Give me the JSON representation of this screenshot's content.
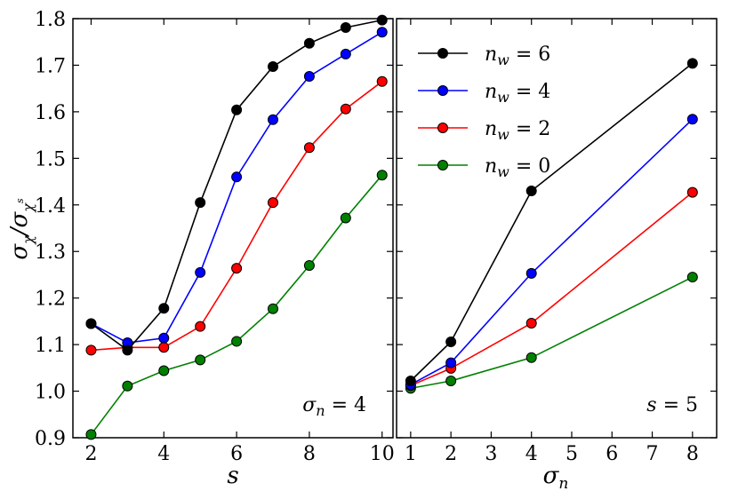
{
  "chart_data": [
    {
      "type": "line",
      "xlabel": "s",
      "ylabel": "σχ/σχs",
      "xlim": [
        1.5,
        10.3
      ],
      "ylim": [
        0.9,
        1.8
      ],
      "xticks": [
        2,
        4,
        6,
        8,
        10
      ],
      "yticks": [
        0.9,
        1.0,
        1.1,
        1.2,
        1.3,
        1.4,
        1.5,
        1.6,
        1.7,
        1.8
      ],
      "annotation": "σn = 4",
      "series": [
        {
          "name": "nw = 6",
          "color": "#000000",
          "x": [
            2,
            3,
            4,
            5,
            6,
            7,
            8,
            9,
            10
          ],
          "values": [
            1.145,
            1.088,
            1.178,
            1.405,
            1.604,
            1.697,
            1.747,
            1.781,
            1.797
          ]
        },
        {
          "name": "nw = 4",
          "color": "#0000ff",
          "x": [
            2,
            3,
            4,
            5,
            6,
            7,
            8,
            9,
            10
          ],
          "values": [
            1.145,
            1.104,
            1.114,
            1.255,
            1.46,
            1.583,
            1.676,
            1.724,
            1.771
          ]
        },
        {
          "name": "nw = 2",
          "color": "#ff0000",
          "x": [
            2,
            3,
            4,
            5,
            6,
            7,
            8,
            9,
            10
          ],
          "values": [
            1.088,
            1.094,
            1.094,
            1.139,
            1.264,
            1.405,
            1.523,
            1.606,
            1.665
          ]
        },
        {
          "name": "nw = 0",
          "color": "#008000",
          "x": [
            2,
            3,
            4,
            5,
            6,
            7,
            8,
            9,
            10
          ],
          "values": [
            0.907,
            1.011,
            1.044,
            1.067,
            1.107,
            1.177,
            1.27,
            1.372,
            1.464
          ]
        }
      ]
    },
    {
      "type": "line",
      "xlabel": "σn",
      "ylabel": "",
      "xlim": [
        0.65,
        8.6
      ],
      "ylim": [
        0.9,
        1.8
      ],
      "xticks": [
        1,
        2,
        3,
        4,
        5,
        6,
        7,
        8
      ],
      "yticks": [
        0.9,
        1.0,
        1.1,
        1.2,
        1.3,
        1.4,
        1.5,
        1.6,
        1.7,
        1.8
      ],
      "annotation": "s = 5",
      "legend": "top-left",
      "series": [
        {
          "name": "nw = 6",
          "color": "#000000",
          "x": [
            1,
            2,
            4,
            8
          ],
          "values": [
            1.022,
            1.106,
            1.43,
            1.704
          ]
        },
        {
          "name": "nw = 4",
          "color": "#0000ff",
          "x": [
            1,
            2,
            4,
            8
          ],
          "values": [
            1.014,
            1.061,
            1.253,
            1.584
          ]
        },
        {
          "name": "nw = 2",
          "color": "#ff0000",
          "x": [
            1,
            2,
            4,
            8
          ],
          "values": [
            1.012,
            1.049,
            1.146,
            1.427
          ]
        },
        {
          "name": "nw = 0",
          "color": "#008000",
          "x": [
            1,
            2,
            4,
            8
          ],
          "values": [
            1.006,
            1.022,
            1.072,
            1.245
          ]
        }
      ]
    }
  ]
}
